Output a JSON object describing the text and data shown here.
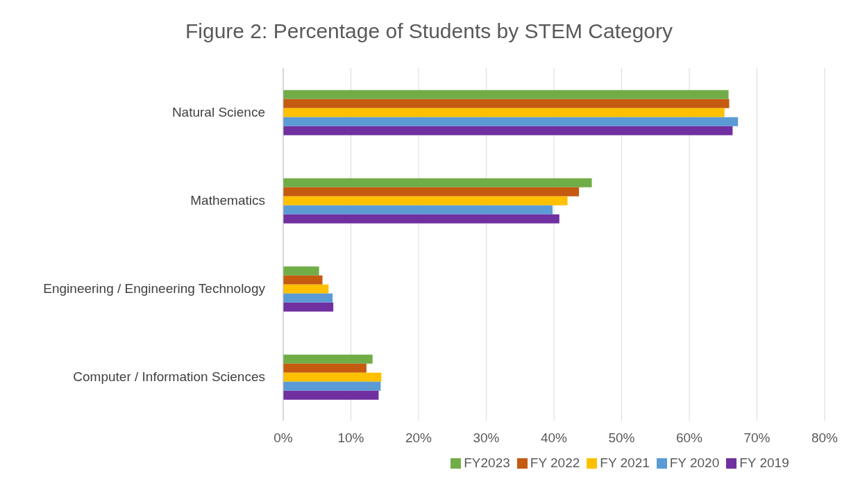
{
  "chart_data": {
    "type": "bar",
    "orientation": "horizontal",
    "title": "Figure 2: Percentage of Students by STEM Category",
    "categories": [
      "Natural Science",
      "Mathematics",
      "Engineering / Engineering Technology",
      "Computer / Information Sciences"
    ],
    "series": [
      {
        "name": "FY2023",
        "color": "#70ad47",
        "values": [
          65.8,
          45.6,
          5.3,
          13.2
        ]
      },
      {
        "name": "FY 2022",
        "color": "#c55a11",
        "values": [
          65.9,
          43.7,
          5.8,
          12.3
        ]
      },
      {
        "name": "FY 2021",
        "color": "#ffc000",
        "values": [
          65.2,
          42.0,
          6.7,
          14.5
        ]
      },
      {
        "name": "FY 2020",
        "color": "#5b9bd5",
        "values": [
          67.2,
          39.8,
          7.3,
          14.4
        ]
      },
      {
        "name": "FY 2019",
        "color": "#7030a0",
        "values": [
          66.4,
          40.8,
          7.4,
          14.1
        ]
      }
    ],
    "xlim": [
      0,
      80
    ],
    "xticks": [
      {
        "value": 0,
        "label": "0%"
      },
      {
        "value": 10,
        "label": "10%"
      },
      {
        "value": 20,
        "label": "20%"
      },
      {
        "value": 30,
        "label": "30%"
      },
      {
        "value": 40,
        "label": "40%"
      },
      {
        "value": 50,
        "label": "50%"
      },
      {
        "value": 60,
        "label": "60%"
      },
      {
        "value": 70,
        "label": "70%"
      },
      {
        "value": 80,
        "label": "80%"
      }
    ],
    "grid": "x",
    "legend": "bottom"
  }
}
